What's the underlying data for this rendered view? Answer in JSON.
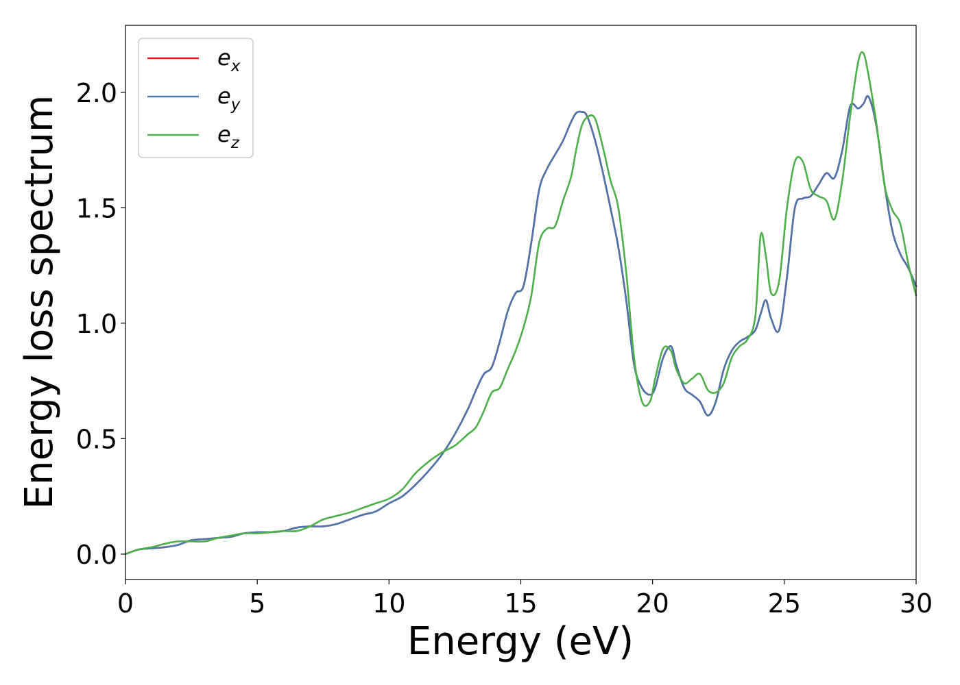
{
  "chart_data": {
    "type": "line",
    "title": "",
    "xlabel": "Energy (eV)",
    "ylabel": "Energy loss spectrum",
    "xlim": [
      0,
      30
    ],
    "ylim": [
      -0.11,
      2.29
    ],
    "xticks": [
      0,
      5,
      10,
      15,
      20,
      25,
      30
    ],
    "xtick_labels": [
      "0",
      "5",
      "10",
      "15",
      "20",
      "25",
      "30"
    ],
    "yticks": [
      0.0,
      0.5,
      1.0,
      1.5,
      2.0
    ],
    "ytick_labels": [
      "0.0",
      "0.5",
      "1.0",
      "1.5",
      "2.0"
    ],
    "grid": false,
    "legend_position": "top-left",
    "series": [
      {
        "name": "e_x",
        "label_base": "e",
        "label_sub": "x",
        "color": "#e41a1c",
        "x": [
          0,
          0.5,
          1,
          1.5,
          2,
          2.5,
          3,
          3.5,
          4,
          4.5,
          5,
          5.5,
          6,
          6.5,
          7,
          7.5,
          8,
          8.5,
          9,
          9.5,
          10,
          10.5,
          11,
          11.5,
          12,
          12.5,
          13,
          13.3,
          13.6,
          13.9,
          14.2,
          14.5,
          14.8,
          15.1,
          15.4,
          15.7,
          16,
          16.3,
          16.6,
          16.9,
          17.1,
          17.3,
          17.5,
          17.8,
          18.1,
          18.4,
          18.7,
          19,
          19.3,
          19.6,
          19.9,
          20.1,
          20.4,
          20.7,
          20.9,
          21.2,
          21.5,
          21.8,
          22.1,
          22.4,
          22.7,
          23,
          23.3,
          23.6,
          23.9,
          24.1,
          24.3,
          24.5,
          24.8,
          25.1,
          25.4,
          25.7,
          26,
          26.3,
          26.6,
          26.9,
          27.2,
          27.5,
          27.8,
          28,
          28.2,
          28.5,
          28.8,
          29.1,
          29.4,
          29.7,
          30
        ],
        "y": [
          0.0,
          0.02,
          0.025,
          0.03,
          0.04,
          0.06,
          0.065,
          0.07,
          0.075,
          0.09,
          0.095,
          0.095,
          0.1,
          0.115,
          0.12,
          0.12,
          0.13,
          0.15,
          0.17,
          0.185,
          0.22,
          0.25,
          0.3,
          0.36,
          0.43,
          0.52,
          0.63,
          0.71,
          0.78,
          0.81,
          0.92,
          1.05,
          1.13,
          1.16,
          1.35,
          1.58,
          1.67,
          1.73,
          1.79,
          1.87,
          1.91,
          1.915,
          1.9,
          1.8,
          1.66,
          1.5,
          1.33,
          1.1,
          0.82,
          0.72,
          0.69,
          0.72,
          0.85,
          0.9,
          0.82,
          0.72,
          0.69,
          0.66,
          0.6,
          0.66,
          0.8,
          0.88,
          0.92,
          0.94,
          0.97,
          1.04,
          1.1,
          1.02,
          0.97,
          1.2,
          1.5,
          1.54,
          1.55,
          1.6,
          1.65,
          1.63,
          1.75,
          1.94,
          1.93,
          1.95,
          1.98,
          1.85,
          1.6,
          1.4,
          1.3,
          1.24,
          1.16
        ]
      },
      {
        "name": "e_y",
        "label_base": "e",
        "label_sub": "y",
        "color": "#4a75ad",
        "x": [
          0,
          0.5,
          1,
          1.5,
          2,
          2.5,
          3,
          3.5,
          4,
          4.5,
          5,
          5.5,
          6,
          6.5,
          7,
          7.5,
          8,
          8.5,
          9,
          9.5,
          10,
          10.5,
          11,
          11.5,
          12,
          12.5,
          13,
          13.3,
          13.6,
          13.9,
          14.2,
          14.5,
          14.8,
          15.1,
          15.4,
          15.7,
          16,
          16.3,
          16.6,
          16.9,
          17.1,
          17.3,
          17.5,
          17.8,
          18.1,
          18.4,
          18.7,
          19,
          19.3,
          19.6,
          19.9,
          20.1,
          20.4,
          20.7,
          20.9,
          21.2,
          21.5,
          21.8,
          22.1,
          22.4,
          22.7,
          23,
          23.3,
          23.6,
          23.9,
          24.1,
          24.3,
          24.5,
          24.8,
          25.1,
          25.4,
          25.7,
          26,
          26.3,
          26.6,
          26.9,
          27.2,
          27.5,
          27.8,
          28,
          28.2,
          28.5,
          28.8,
          29.1,
          29.4,
          29.7,
          30
        ],
        "y": [
          0.0,
          0.02,
          0.025,
          0.03,
          0.04,
          0.06,
          0.065,
          0.07,
          0.075,
          0.09,
          0.095,
          0.095,
          0.1,
          0.115,
          0.12,
          0.12,
          0.13,
          0.15,
          0.17,
          0.185,
          0.22,
          0.25,
          0.3,
          0.36,
          0.43,
          0.52,
          0.63,
          0.71,
          0.78,
          0.81,
          0.92,
          1.05,
          1.13,
          1.16,
          1.35,
          1.58,
          1.67,
          1.73,
          1.79,
          1.87,
          1.91,
          1.915,
          1.9,
          1.8,
          1.66,
          1.5,
          1.33,
          1.1,
          0.82,
          0.72,
          0.69,
          0.72,
          0.85,
          0.9,
          0.82,
          0.72,
          0.69,
          0.66,
          0.6,
          0.66,
          0.8,
          0.88,
          0.92,
          0.94,
          0.97,
          1.04,
          1.1,
          1.02,
          0.97,
          1.2,
          1.5,
          1.54,
          1.55,
          1.6,
          1.65,
          1.63,
          1.75,
          1.94,
          1.93,
          1.95,
          1.98,
          1.85,
          1.6,
          1.4,
          1.3,
          1.24,
          1.16
        ]
      },
      {
        "name": "e_z",
        "label_base": "e",
        "label_sub": "z",
        "color": "#4daf4a",
        "x": [
          0,
          0.5,
          1,
          1.5,
          2,
          2.5,
          3,
          3.5,
          4,
          4.5,
          5,
          5.5,
          6,
          6.5,
          7,
          7.5,
          8,
          8.5,
          9,
          9.5,
          10,
          10.5,
          11,
          11.5,
          12,
          12.5,
          13,
          13.3,
          13.6,
          13.9,
          14.2,
          14.5,
          14.8,
          15.1,
          15.4,
          15.7,
          16,
          16.3,
          16.6,
          16.9,
          17.1,
          17.3,
          17.5,
          17.8,
          18.1,
          18.4,
          18.7,
          19,
          19.3,
          19.6,
          19.9,
          20.1,
          20.4,
          20.7,
          20.9,
          21.2,
          21.5,
          21.8,
          22.1,
          22.4,
          22.7,
          23,
          23.3,
          23.6,
          23.9,
          24.1,
          24.3,
          24.5,
          24.8,
          25.1,
          25.4,
          25.7,
          26,
          26.3,
          26.6,
          26.9,
          27.2,
          27.5,
          27.8,
          28,
          28.2,
          28.5,
          28.8,
          29.1,
          29.4,
          29.7,
          30
        ],
        "y": [
          0.0,
          0.02,
          0.03,
          0.045,
          0.055,
          0.055,
          0.055,
          0.07,
          0.08,
          0.09,
          0.09,
          0.095,
          0.1,
          0.1,
          0.12,
          0.15,
          0.165,
          0.18,
          0.2,
          0.22,
          0.24,
          0.28,
          0.35,
          0.4,
          0.44,
          0.47,
          0.52,
          0.55,
          0.62,
          0.7,
          0.72,
          0.8,
          0.88,
          0.98,
          1.12,
          1.35,
          1.41,
          1.42,
          1.53,
          1.63,
          1.75,
          1.85,
          1.89,
          1.89,
          1.77,
          1.62,
          1.5,
          1.22,
          0.85,
          0.66,
          0.66,
          0.76,
          0.89,
          0.88,
          0.8,
          0.74,
          0.76,
          0.78,
          0.71,
          0.7,
          0.74,
          0.85,
          0.9,
          0.93,
          1.03,
          1.38,
          1.29,
          1.13,
          1.18,
          1.5,
          1.7,
          1.7,
          1.58,
          1.55,
          1.53,
          1.45,
          1.62,
          1.9,
          2.13,
          2.17,
          2.07,
          1.86,
          1.6,
          1.49,
          1.43,
          1.26,
          1.12
        ]
      }
    ]
  }
}
